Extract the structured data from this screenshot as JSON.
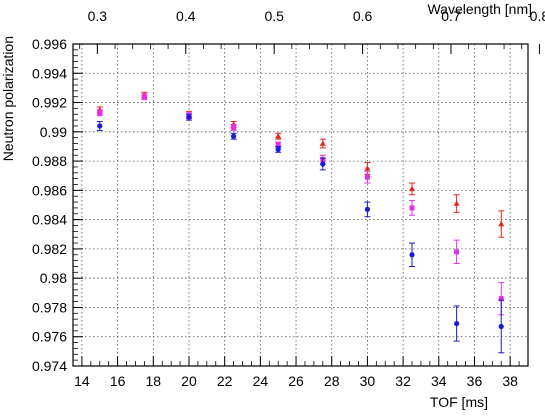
{
  "chart_data": {
    "type": "scatter",
    "title": "",
    "xlabel": "TOF [ms]",
    "ylabel": "Neutron polarization",
    "x2label": "Wavelength [nm]",
    "xlim": [
      13.5,
      39
    ],
    "ylim": [
      0.974,
      0.996
    ],
    "grid": true,
    "x_ticks": [
      14,
      16,
      18,
      20,
      22,
      24,
      26,
      28,
      30,
      32,
      34,
      36,
      38
    ],
    "y_ticks": [
      0.974,
      0.976,
      0.978,
      0.98,
      0.982,
      0.984,
      0.986,
      0.988,
      0.99,
      0.992,
      0.994,
      0.996
    ],
    "x2_ticks": [
      0.3,
      0.4,
      0.5,
      0.6,
      0.7,
      0.8
    ],
    "x2_tof_factor": 49.55,
    "series": [
      {
        "color": "#e8231b",
        "marker": "triangle",
        "points": [
          {
            "x": 15.0,
            "y": 0.9915,
            "err": 0.0002
          },
          {
            "x": 17.5,
            "y": 0.9925,
            "err": 0.0002
          },
          {
            "x": 20.0,
            "y": 0.9912,
            "err": 0.0002
          },
          {
            "x": 22.5,
            "y": 0.9905,
            "err": 0.0002
          },
          {
            "x": 25.0,
            "y": 0.9897,
            "err": 0.0002
          },
          {
            "x": 27.5,
            "y": 0.9892,
            "err": 0.0003
          },
          {
            "x": 30.0,
            "y": 0.9875,
            "err": 0.0004
          },
          {
            "x": 32.5,
            "y": 0.9861,
            "err": 0.0004
          },
          {
            "x": 35.0,
            "y": 0.9851,
            "err": 0.0006
          },
          {
            "x": 37.5,
            "y": 0.9837,
            "err": 0.0009
          }
        ]
      },
      {
        "color": "#e62ee6",
        "marker": "square",
        "points": [
          {
            "x": 15.0,
            "y": 0.9913,
            "err": 0.0002
          },
          {
            "x": 17.5,
            "y": 0.9924,
            "err": 0.0002
          },
          {
            "x": 20.0,
            "y": 0.9911,
            "err": 0.0002
          },
          {
            "x": 22.5,
            "y": 0.9903,
            "err": 0.0002
          },
          {
            "x": 25.0,
            "y": 0.9891,
            "err": 0.0002
          },
          {
            "x": 27.5,
            "y": 0.9881,
            "err": 0.0003
          },
          {
            "x": 30.0,
            "y": 0.9869,
            "err": 0.0004
          },
          {
            "x": 32.5,
            "y": 0.9848,
            "err": 0.0005
          },
          {
            "x": 35.0,
            "y": 0.9818,
            "err": 0.0008
          },
          {
            "x": 37.5,
            "y": 0.9786,
            "err": 0.0011
          }
        ]
      },
      {
        "color": "#1a1ad6",
        "marker": "circle",
        "points": [
          {
            "x": 15.0,
            "y": 0.9904,
            "err": 0.0003
          },
          {
            "x": 20.0,
            "y": 0.991,
            "err": 0.0002
          },
          {
            "x": 22.5,
            "y": 0.9897,
            "err": 0.0002
          },
          {
            "x": 25.0,
            "y": 0.9888,
            "err": 0.0002
          },
          {
            "x": 27.5,
            "y": 0.9878,
            "err": 0.0004
          },
          {
            "x": 30.0,
            "y": 0.9847,
            "err": 0.0005
          },
          {
            "x": 32.5,
            "y": 0.9816,
            "err": 0.0008
          },
          {
            "x": 35.0,
            "y": 0.9769,
            "err": 0.0012
          },
          {
            "x": 37.5,
            "y": 0.9767,
            "err": 0.0018
          }
        ]
      }
    ]
  }
}
